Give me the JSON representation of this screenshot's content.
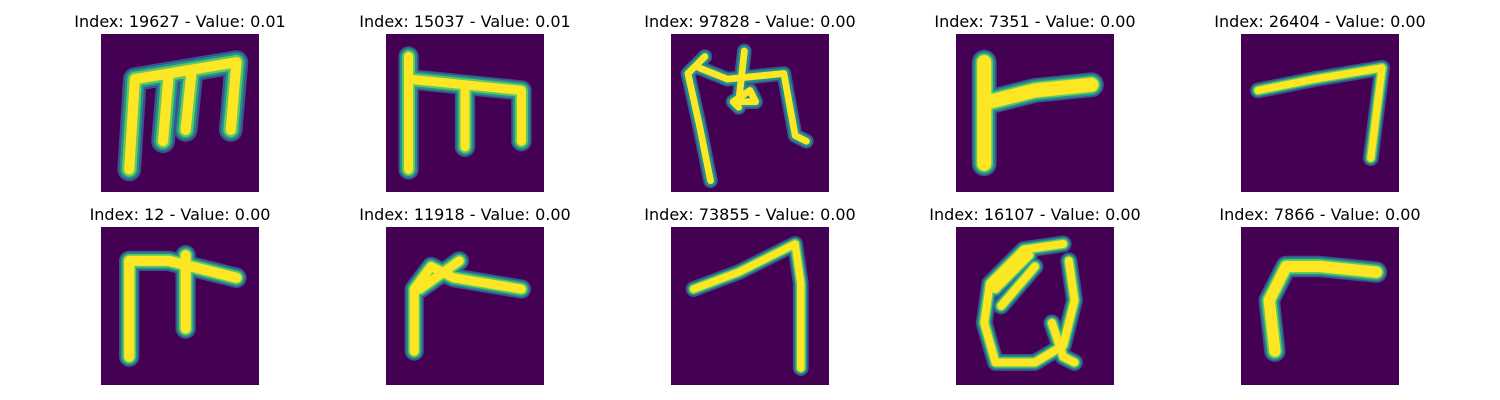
{
  "colors": {
    "background": "#440154",
    "stroke_core": "#fde725",
    "stroke_edge_1": "#5ec962",
    "stroke_edge_2": "#21918c",
    "stroke_edge_3": "#3b528b"
  },
  "panels": [
    {
      "title": "Index: 19627 - Value: 0.01",
      "glyph": "m-shape"
    },
    {
      "title": "Index: 15037 - Value: 0.01",
      "glyph": "m-shape"
    },
    {
      "title": "Index: 97828 - Value: 0.00",
      "glyph": "m-shape-looped"
    },
    {
      "title": "Index: 7351 - Value: 0.00",
      "glyph": "gamma-shape"
    },
    {
      "title": "Index: 26404 - Value: 0.00",
      "glyph": "seven-shape"
    },
    {
      "title": "Index: 12 - Value: 0.00",
      "glyph": "gamma-with-stroke"
    },
    {
      "title": "Index: 11918 - Value: 0.00",
      "glyph": "bent-stroke"
    },
    {
      "title": "Index: 73855 - Value: 0.00",
      "glyph": "seven-shape"
    },
    {
      "title": "Index: 16107 - Value: 0.00",
      "glyph": "q-loop"
    },
    {
      "title": "Index: 7866 - Value: 0.00",
      "glyph": "gamma-shape"
    }
  ]
}
